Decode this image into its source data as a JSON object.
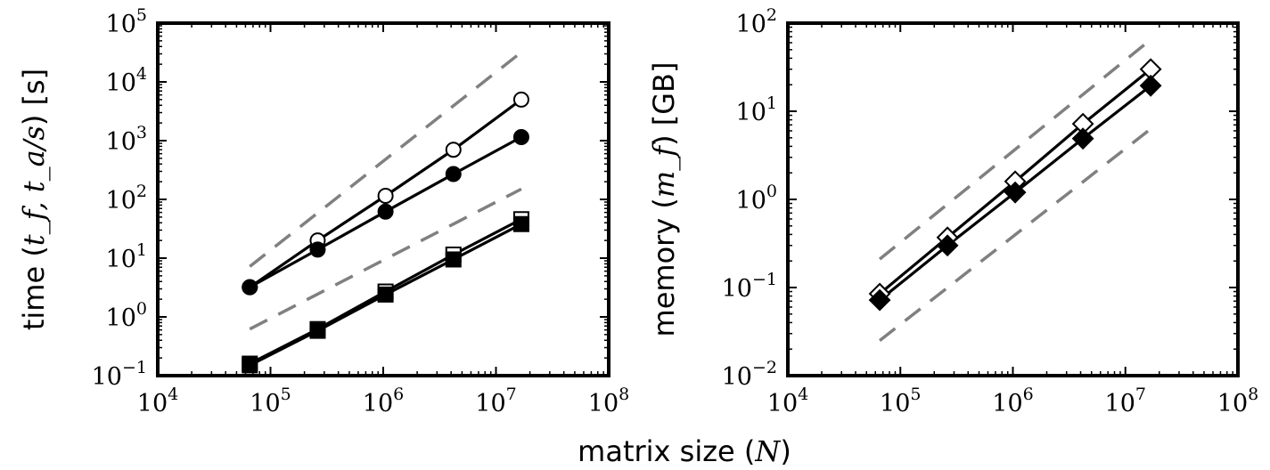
{
  "xlabel": {
    "text": "matrix size (",
    "var": "N",
    "close": ")"
  },
  "chart_data": [
    {
      "type": "line",
      "xscale": "log",
      "yscale": "log",
      "xlim": [
        10000,
        100000000
      ],
      "ylim": [
        0.1,
        100000
      ],
      "x_ticks": [
        "10^4",
        "10^5",
        "10^6",
        "10^7",
        "10^8"
      ],
      "y_ticks": [
        "10^-1",
        "10^0",
        "10^1",
        "10^2",
        "10^3",
        "10^4",
        "10^5"
      ],
      "ylabel": {
        "text": "time (",
        "math": "t_f, t_a/s",
        "close": ") [s]"
      },
      "series": [
        {
          "marker": "circle-open",
          "x": [
            65536,
            262144,
            1048576,
            4194304,
            16777216
          ],
          "y": [
            3.2,
            20,
            115,
            700,
            5000
          ]
        },
        {
          "marker": "circle-filled",
          "x": [
            65536,
            262144,
            1048576,
            4194304,
            16777216
          ],
          "y": [
            3.2,
            14,
            62,
            270,
            1150
          ]
        },
        {
          "marker": "square-open",
          "x": [
            65536,
            262144,
            1048576,
            4194304,
            16777216
          ],
          "y": [
            0.16,
            0.62,
            2.7,
            11.5,
            46
          ]
        },
        {
          "marker": "square-filled",
          "x": [
            65536,
            262144,
            1048576,
            4194304,
            16777216
          ],
          "y": [
            0.15,
            0.58,
            2.4,
            9.5,
            38
          ]
        }
      ],
      "reference_lines": [
        {
          "style": "dashed",
          "x": [
            65536,
            16777216
          ],
          "y": [
            7.2,
            32000
          ]
        },
        {
          "style": "dashed",
          "x": [
            65536,
            16777216
          ],
          "y": [
            0.62,
            150
          ]
        }
      ]
    },
    {
      "type": "line",
      "xscale": "log",
      "yscale": "log",
      "xlim": [
        10000,
        100000000
      ],
      "ylim": [
        0.01,
        100
      ],
      "x_ticks": [
        "10^4",
        "10^5",
        "10^6",
        "10^7",
        "10^8"
      ],
      "y_ticks": [
        "10^-2",
        "10^-1",
        "10^0",
        "10^1",
        "10^2"
      ],
      "ylabel": {
        "text": "memory (",
        "math": "m_f",
        "close": ") [GB]"
      },
      "series": [
        {
          "marker": "diamond-open",
          "x": [
            65536,
            262144,
            1048576,
            4194304,
            16777216
          ],
          "y": [
            0.085,
            0.37,
            1.6,
            7.2,
            30
          ]
        },
        {
          "marker": "diamond-filled",
          "x": [
            65536,
            262144,
            1048576,
            4194304,
            16777216
          ],
          "y": [
            0.072,
            0.3,
            1.2,
            4.9,
            19.5
          ]
        }
      ],
      "reference_lines": [
        {
          "style": "dashed",
          "x": [
            65536,
            16777216
          ],
          "y": [
            0.21,
            65
          ]
        },
        {
          "style": "dashed",
          "x": [
            65536,
            16777216
          ],
          "y": [
            0.025,
            6.3
          ]
        }
      ]
    }
  ]
}
